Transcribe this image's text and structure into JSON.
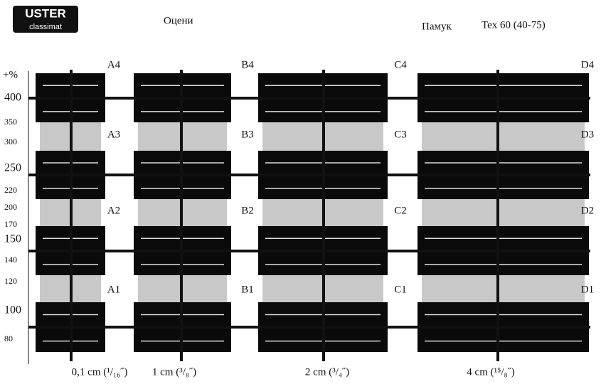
{
  "header": {
    "logo": "USTER",
    "logo_sub": "classimat",
    "title": "Оцени",
    "material": "Памук",
    "count": "Tex  60 (40-75)"
  },
  "scale": {
    "unit": "+%",
    "labels": [
      "400",
      "350",
      "300",
      "250",
      "220",
      "200",
      "170",
      "150",
      "140",
      "120",
      "100",
      "80"
    ]
  },
  "columns": [
    {
      "cells": [
        "A4",
        "A3",
        "A2",
        "A1"
      ],
      "length": "0,1 cm (¹/₁₆˝)"
    },
    {
      "cells": [
        "B4",
        "B3",
        "B2",
        "B1"
      ],
      "length": "1 cm (³/₈˝)"
    },
    {
      "cells": [
        "C4",
        "C3",
        "C2",
        "C1"
      ],
      "length": "2 cm (³/₄˝)"
    },
    {
      "cells": [
        "D4",
        "D3",
        "D2",
        "D1"
      ],
      "length": "4 cm (¹⁵/₈˝)"
    }
  ]
}
